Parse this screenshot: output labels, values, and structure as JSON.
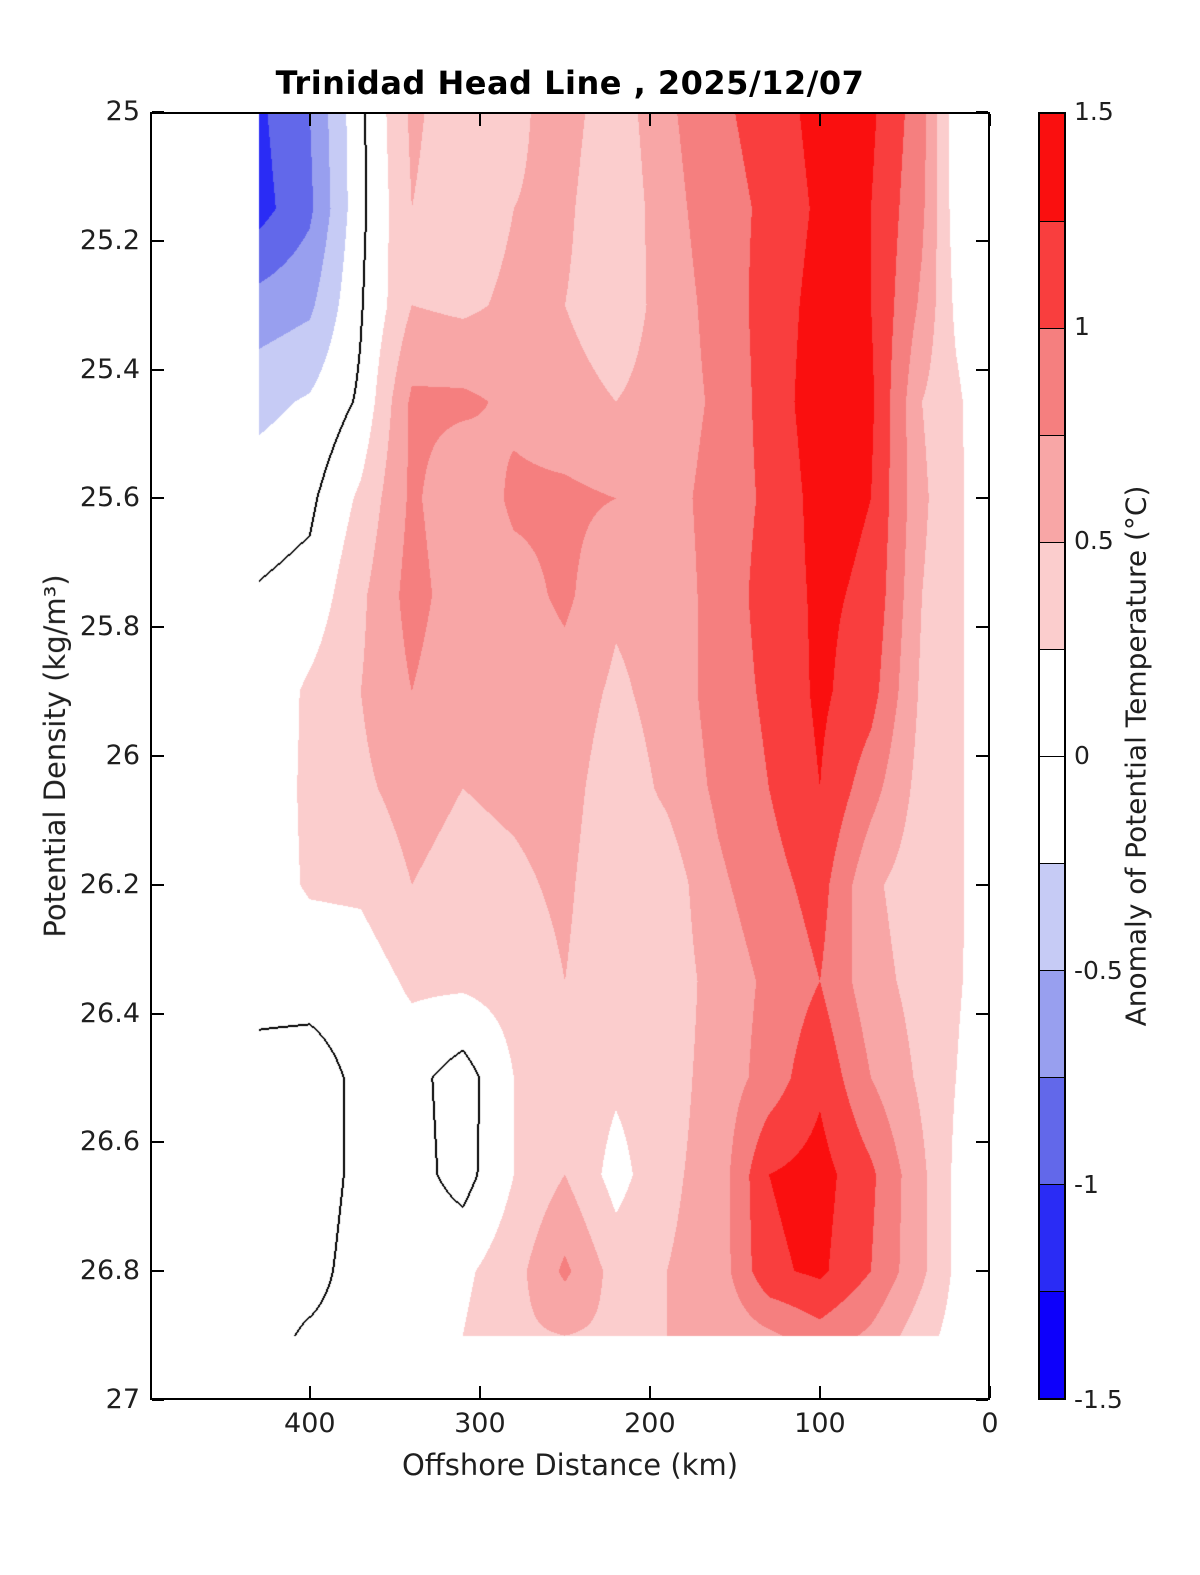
{
  "title": "Trinidad Head Line , 2025/12/07",
  "axes": {
    "x": {
      "label": "Offshore Distance (km)",
      "tick_labels": [
        "400",
        "300",
        "200",
        "100",
        "0"
      ],
      "tick_values": [
        400,
        300,
        200,
        100,
        0
      ],
      "range": [
        494,
        0
      ],
      "reversed": true
    },
    "y": {
      "label": "Potential Density (kg/m³)",
      "tick_labels": [
        "25",
        "25.2",
        "25.4",
        "25.6",
        "25.8",
        "26",
        "26.2",
        "26.4",
        "26.6",
        "26.8",
        "27"
      ],
      "tick_values": [
        25,
        25.2,
        25.4,
        25.6,
        25.8,
        26,
        26.2,
        26.4,
        26.6,
        26.8,
        27
      ],
      "range": [
        25,
        27
      ]
    }
  },
  "colorbar": {
    "label": "Anomaly of Potential Temperature (°C)",
    "tick_labels": [
      "1.5",
      "1",
      "0.5",
      "0",
      "-0.5",
      "-1",
      "-1.5"
    ],
    "tick_values": [
      1.5,
      1,
      0.5,
      0,
      -0.5,
      -1,
      -1.5
    ],
    "levels": [
      -1.5,
      -1.25,
      -1,
      -0.75,
      -0.5,
      -0.25,
      0,
      0.25,
      0.5,
      0.75,
      1,
      1.25,
      1.5
    ],
    "band_colors": [
      "#0d00fb",
      "#2a2cf5",
      "#6268ea",
      "#989fef",
      "#c6cbf5",
      "#ffffff",
      "#ffffff",
      "#fbcdcd",
      "#f8a6a6",
      "#f57f7f",
      "#f93e3e",
      "#fa0f0f"
    ],
    "range": [
      -1.5,
      1.5
    ]
  },
  "chart_data": {
    "type": "filled_contour",
    "title": "Trinidad Head Line , 2025/12/07",
    "xlabel": "Offshore Distance (km)",
    "ylabel": "Potential Density (kg/m³)",
    "zlabel": "Anomaly of Potential Temperature (°C)",
    "x_reversed": true,
    "contour_interval": 0.25,
    "zlim": [
      -1.5,
      1.5
    ],
    "zero_contour_drawn": true,
    "grid_off": true,
    "data_extent": {
      "x_km": [
        12,
        430
      ],
      "density_kgm3": [
        25.0,
        26.9
      ]
    },
    "x_offshore_km": [
      430,
      400,
      370,
      340,
      310,
      280,
      250,
      220,
      190,
      160,
      130,
      100,
      70,
      40,
      20,
      12
    ],
    "y_density_kgm3": [
      25.0,
      25.15,
      25.3,
      25.45,
      25.6,
      25.75,
      25.9,
      26.05,
      26.2,
      26.35,
      26.5,
      26.65,
      26.8,
      26.9
    ],
    "anomaly_degC": [
      [
        -1.05,
        -0.75,
        -0.05,
        0.55,
        0.35,
        0.45,
        0.6,
        0.35,
        0.7,
        0.95,
        1.1,
        1.35,
        1.3,
        0.85,
        0.08,
        0.05
      ],
      [
        -1.1,
        -0.8,
        -0.06,
        0.5,
        0.35,
        0.5,
        0.55,
        0.3,
        0.65,
        0.9,
        1.05,
        1.3,
        1.25,
        0.8,
        0.12,
        0.08
      ],
      [
        -0.65,
        -0.55,
        -0.02,
        0.5,
        0.45,
        0.55,
        0.5,
        0.35,
        0.6,
        0.85,
        1.1,
        1.35,
        1.25,
        0.7,
        0.2,
        0.12
      ],
      [
        -0.32,
        -0.22,
        0.04,
        0.8,
        0.8,
        0.7,
        0.6,
        0.5,
        0.6,
        0.8,
        1.1,
        1.4,
        1.3,
        0.5,
        0.3,
        0.2
      ],
      [
        -0.12,
        -0.05,
        0.3,
        0.8,
        0.55,
        0.8,
        0.8,
        0.75,
        0.65,
        0.85,
        1.05,
        1.35,
        1.25,
        0.55,
        0.3,
        0.22
      ],
      [
        0.02,
        0.08,
        0.45,
        0.85,
        0.6,
        0.65,
        0.8,
        0.55,
        0.6,
        0.85,
        1.1,
        1.3,
        1.2,
        0.5,
        0.3,
        0.22
      ],
      [
        0.05,
        0.3,
        0.5,
        0.75,
        0.55,
        0.6,
        0.65,
        0.45,
        0.6,
        0.85,
        1.05,
        1.3,
        1.1,
        0.45,
        0.3,
        0.22
      ],
      [
        0.1,
        0.3,
        0.45,
        0.6,
        0.5,
        0.55,
        0.6,
        0.35,
        0.55,
        0.8,
        1.0,
        1.25,
        0.85,
        0.4,
        0.3,
        0.22
      ],
      [
        0.12,
        0.28,
        0.3,
        0.5,
        0.4,
        0.45,
        0.55,
        0.3,
        0.35,
        0.7,
        0.9,
        1.1,
        0.55,
        0.35,
        0.3,
        0.22
      ],
      [
        0.08,
        0.08,
        0.1,
        0.3,
        0.3,
        0.35,
        0.5,
        0.3,
        0.35,
        0.6,
        0.8,
        1.0,
        0.6,
        0.4,
        0.28,
        0.22
      ],
      [
        -0.08,
        -0.1,
        0.05,
        0.08,
        -0.12,
        0.25,
        0.45,
        0.3,
        0.4,
        0.6,
        0.85,
        1.2,
        0.75,
        0.45,
        0.25,
        0.18
      ],
      [
        -0.06,
        -0.08,
        0.04,
        0.1,
        -0.1,
        0.25,
        0.5,
        0.15,
        0.45,
        0.6,
        1.25,
        1.35,
        1.05,
        0.55,
        0.2,
        0.15
      ],
      [
        -0.04,
        -0.05,
        0.06,
        0.15,
        0.2,
        0.4,
        0.8,
        0.4,
        0.5,
        0.6,
        1.2,
        1.3,
        1.0,
        0.55,
        0.2,
        0.15
      ],
      [
        -0.05,
        0.02,
        0.05,
        0.2,
        0.25,
        0.45,
        0.5,
        0.45,
        0.5,
        0.55,
        0.7,
        0.9,
        0.7,
        0.35,
        0.15,
        0.1
      ]
    ]
  }
}
